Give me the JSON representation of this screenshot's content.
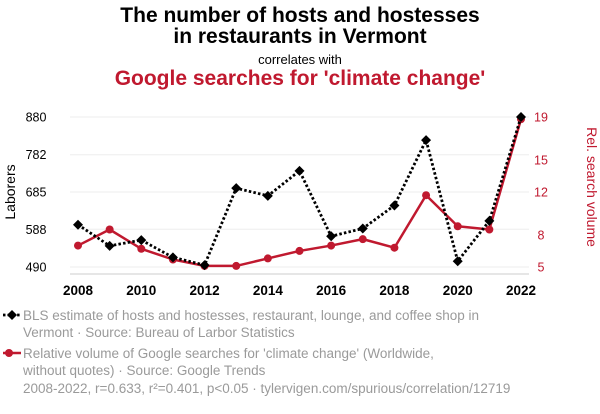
{
  "titles": {
    "line1": "The number of hosts and hostesses",
    "line2": "in restaurants in Vermont",
    "correlates": "correlates with",
    "line3": "Google searches for 'climate change'"
  },
  "legend": {
    "series1_line1": "BLS estimate of hosts and hostesses, restaurant, lounge, and coffee shop in",
    "series1_line2": "Vermont · Source: Bureau of Larbor Statistics",
    "series2_line1": "Relative volume of Google searches for 'climate change' (Worldwide,",
    "series2_line2": "without quotes) · Source: Google Trends"
  },
  "footer": "2008-2022, r=0.633, r²=0.401, p<0.05 · tylervigen.com/spurious/correlation/12719",
  "colors": {
    "series1": "#000000",
    "series2": "#c0192f"
  },
  "chart_data": {
    "type": "line",
    "x": [
      2008,
      2009,
      2010,
      2011,
      2012,
      2013,
      2014,
      2015,
      2016,
      2017,
      2018,
      2019,
      2020,
      2021,
      2022
    ],
    "series": [
      {
        "name": "BLS estimate of hosts and hostesses, restaurant, lounge, and coffee shop in Vermont",
        "axis": "left",
        "style": "dotted",
        "marker": "diamond",
        "values": [
          600,
          545,
          560,
          515,
          495,
          695,
          675,
          740,
          570,
          590,
          650,
          820,
          505,
          610,
          880
        ]
      },
      {
        "name": "Relative volume of Google searches for 'climate change' (Worldwide, without quotes)",
        "axis": "right",
        "style": "solid",
        "marker": "circle",
        "values": [
          7,
          8.5,
          6.7,
          5.7,
          5.1,
          5.1,
          5.8,
          6.5,
          7,
          7.6,
          6.8,
          11.7,
          8.8,
          8.5,
          18.8
        ]
      }
    ],
    "ylabel_left": "Laborers",
    "ylabel_right": "Rel. search volume",
    "ylim_left": [
      490,
      880
    ],
    "ylim_right": [
      5,
      19
    ],
    "yticks_left": [
      490,
      588,
      685,
      782,
      880
    ],
    "yticks_right": [
      5,
      8,
      12,
      15,
      19
    ],
    "xticks": [
      2008,
      2010,
      2012,
      2014,
      2016,
      2018,
      2020,
      2022
    ],
    "xlim": [
      2008,
      2022
    ]
  }
}
